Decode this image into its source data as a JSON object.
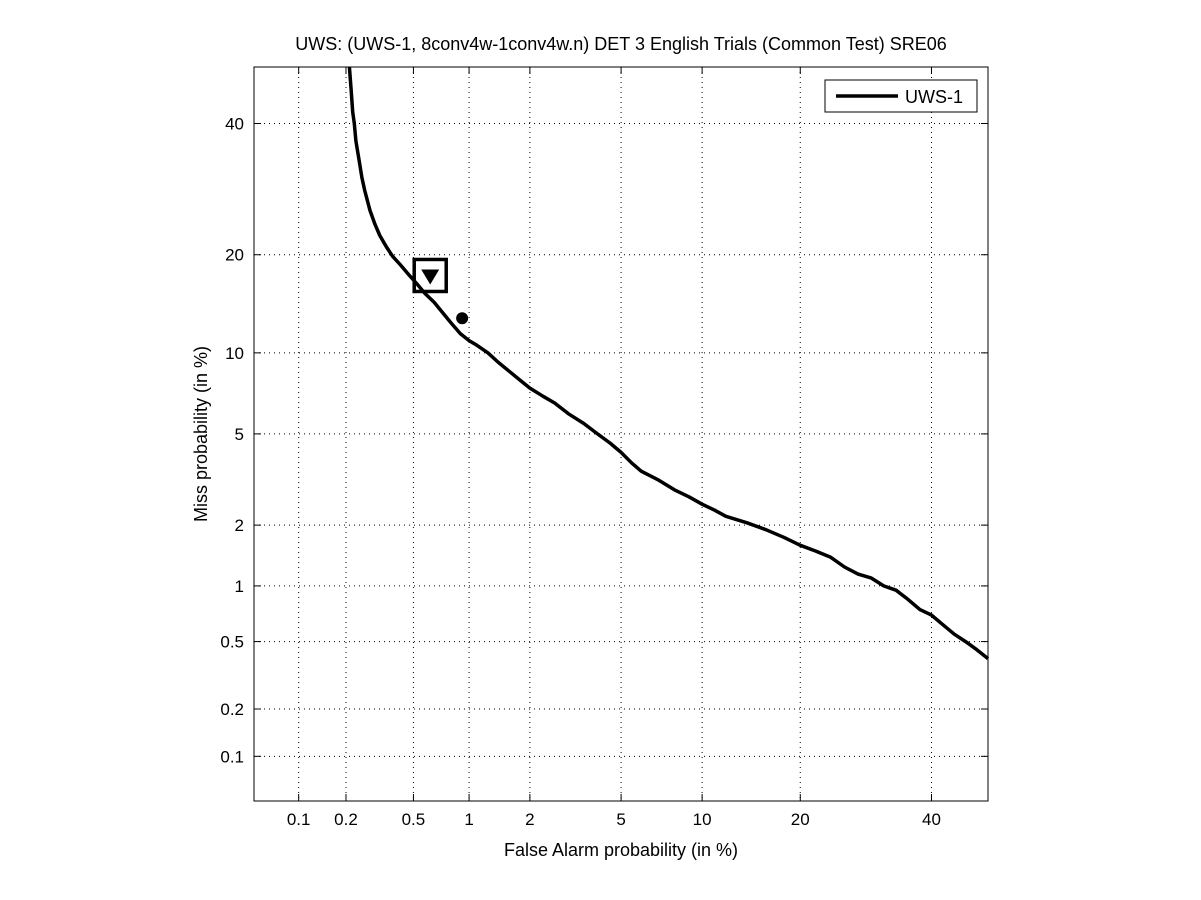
{
  "chart_data": {
    "type": "line",
    "title": "UWS: (UWS-1, 8conv4w-1conv4w.n) DET 3 English Trials (Common Test) SRE06",
    "xlabel": "False Alarm probability (in %)",
    "ylabel": "Miss probability (in %)",
    "x_scale": "probit",
    "y_scale": "probit",
    "xlim": [
      0.05,
      50
    ],
    "ylim": [
      0.05,
      50
    ],
    "x_ticks": [
      0.1,
      0.2,
      0.5,
      1,
      2,
      5,
      10,
      20,
      40
    ],
    "x_tick_labels": [
      "0.1",
      "0.2",
      "0.5",
      "1",
      "2",
      "5",
      "10",
      "20",
      "40"
    ],
    "y_ticks": [
      0.1,
      0.2,
      0.5,
      1,
      2,
      5,
      10,
      20,
      40
    ],
    "y_tick_labels": [
      "0.1",
      "0.2",
      "0.5",
      "1",
      "2",
      "5",
      "10",
      "20",
      "40"
    ],
    "grid": true,
    "legend_position": "top-right",
    "series": [
      {
        "name": "UWS-1",
        "color": "#000000",
        "x": [
          0.21,
          0.215,
          0.22,
          0.225,
          0.23,
          0.24,
          0.25,
          0.26,
          0.28,
          0.3,
          0.32,
          0.35,
          0.38,
          0.42,
          0.47,
          0.52,
          0.58,
          0.65,
          0.72,
          0.8,
          0.9,
          1.0,
          1.1,
          1.25,
          1.4,
          1.6,
          1.8,
          2.0,
          2.3,
          2.6,
          3.0,
          3.5,
          4.0,
          4.5,
          5.0,
          5.5,
          6.0,
          7.0,
          8.0,
          9.0,
          10.0,
          11.0,
          12.0,
          14.0,
          16.0,
          18.0,
          20.0,
          22.0,
          24.0,
          26.0,
          28.0,
          30.0,
          32.0,
          34.0,
          36.0,
          38.0,
          40.0,
          42.0,
          44.0,
          46.0,
          48.0,
          50.0
        ],
        "y": [
          50,
          46,
          42,
          40,
          37,
          34,
          31,
          29,
          26,
          24,
          22.5,
          21,
          19.8,
          18.8,
          17.6,
          16.6,
          15.5,
          14.6,
          13.6,
          12.6,
          11.6,
          11.0,
          10.6,
          10.0,
          9.3,
          8.6,
          8.0,
          7.5,
          7.0,
          6.6,
          6.0,
          5.5,
          5.0,
          4.6,
          4.2,
          3.8,
          3.5,
          3.2,
          2.9,
          2.7,
          2.5,
          2.35,
          2.2,
          2.05,
          1.9,
          1.75,
          1.6,
          1.5,
          1.4,
          1.25,
          1.15,
          1.1,
          1.0,
          0.95,
          0.85,
          0.75,
          0.7,
          0.62,
          0.55,
          0.5,
          0.45,
          0.4
        ]
      }
    ],
    "markers": [
      {
        "shape": "square",
        "x": 0.62,
        "y": 17.5,
        "color": "#000000"
      },
      {
        "shape": "triangle-down",
        "x": 0.62,
        "y": 17.5,
        "color": "#000000"
      },
      {
        "shape": "circle",
        "x": 0.92,
        "y": 13.0,
        "color": "#000000"
      }
    ]
  }
}
